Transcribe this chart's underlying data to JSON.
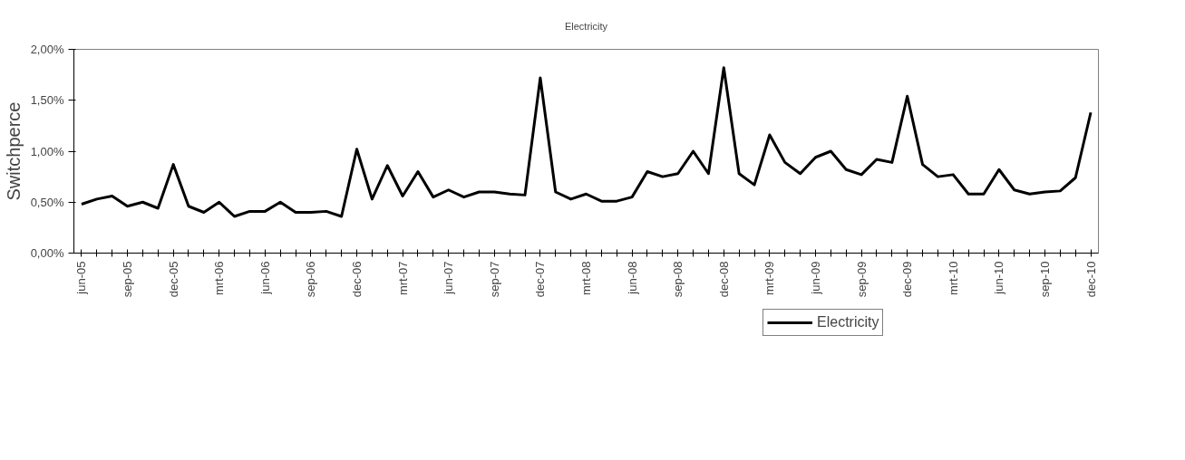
{
  "chart_data": {
    "type": "line",
    "title": "Electricity",
    "ylabel": "Switchperce",
    "categories": [
      "jun-05",
      null,
      null,
      "sep-05",
      null,
      null,
      "dec-05",
      null,
      null,
      "mrt-06",
      null,
      null,
      "jun-06",
      null,
      null,
      "sep-06",
      null,
      null,
      "dec-06",
      null,
      null,
      "mrt-07",
      null,
      null,
      "jun-07",
      null,
      null,
      "sep-07",
      null,
      null,
      "dec-07",
      null,
      null,
      "mrt-08",
      null,
      null,
      "jun-08",
      null,
      null,
      "sep-08",
      null,
      null,
      "dec-08",
      null,
      null,
      "mrt-09",
      null,
      null,
      "jun-09",
      null,
      null,
      "sep-09",
      null,
      null,
      "dec-09",
      null,
      null,
      "mrt-10",
      null,
      null,
      "jun-10",
      null,
      null,
      "sep-10",
      null,
      null,
      "dec-10"
    ],
    "series": [
      {
        "name": "Electricity",
        "color": "#000000",
        "values": [
          0.48,
          0.53,
          0.56,
          0.46,
          0.5,
          0.44,
          0.87,
          0.46,
          0.4,
          0.5,
          0.36,
          0.41,
          0.41,
          0.5,
          0.4,
          0.4,
          0.41,
          0.36,
          1.02,
          0.53,
          0.86,
          0.56,
          0.8,
          0.55,
          0.62,
          0.55,
          0.6,
          0.6,
          0.58,
          0.57,
          1.72,
          0.6,
          0.53,
          0.58,
          0.51,
          0.51,
          0.55,
          0.8,
          0.75,
          0.78,
          1.0,
          0.78,
          1.82,
          0.78,
          0.67,
          1.16,
          0.89,
          0.78,
          0.94,
          1.0,
          0.82,
          0.77,
          0.92,
          0.89,
          1.54,
          0.87,
          0.75,
          0.77,
          0.58,
          0.58,
          0.82,
          0.62,
          0.58,
          0.6,
          0.61,
          0.74,
          1.38
        ]
      }
    ],
    "ylim": [
      0,
      2
    ],
    "yticks": [
      {
        "value": 0,
        "label": "0,00%"
      },
      {
        "value": 0.5,
        "label": "0,50%"
      },
      {
        "value": 1,
        "label": "1,00%"
      },
      {
        "value": 1.5,
        "label": "1,50%"
      },
      {
        "value": 2,
        "label": "2,00%"
      }
    ],
    "grid": false,
    "legend": "bottom",
    "marker": "none",
    "line_style": "solid"
  }
}
